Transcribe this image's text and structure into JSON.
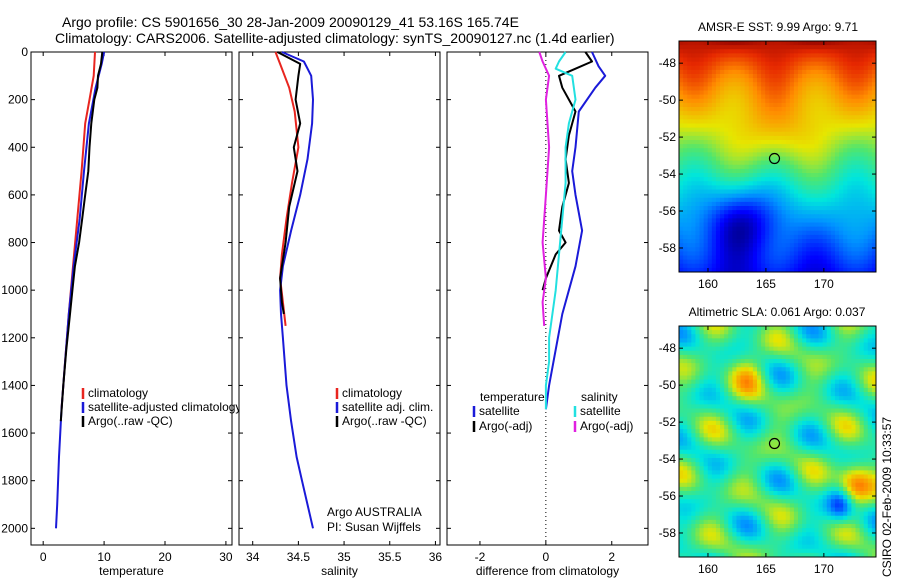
{
  "title_line1": "Argo profile: CS 5901656_30 28-Jan-2009 20090129_41 53.16S 165.74E",
  "title_line2": "Climatology: CARS2006. Satellite-adjusted climatology: synTS_20090127.nc (1.4d earlier)",
  "side_label": "CSIRO 02-Feb-2009 10:33:57",
  "colors": {
    "red": "#e8251f",
    "blue": "#1a1ad8",
    "black": "#000000",
    "cyan": "#22e0e0",
    "magenta": "#e020e0"
  },
  "chart_data": [
    {
      "type": "line",
      "name": "temperature-profile",
      "xlabel": "temperature",
      "xlim": [
        -2,
        31
      ],
      "ylim": [
        0,
        2070
      ],
      "y_reversed": true,
      "xticks": [
        0,
        10,
        20,
        30
      ],
      "yticks": [
        0,
        200,
        400,
        600,
        800,
        1000,
        1200,
        1400,
        1600,
        1800,
        2000
      ],
      "legend": [
        "climatology",
        "satellite-adjusted climatology",
        "Argo(..raw -QC)"
      ],
      "series": [
        {
          "name": "climatology",
          "color": "red",
          "x": [
            8.5,
            8.3,
            7.6,
            6.9,
            6.3,
            5.6,
            4.9,
            4.2,
            3.6,
            3.0
          ],
          "y": [
            0,
            100,
            200,
            300,
            500,
            700,
            900,
            1100,
            1300,
            1500
          ]
        },
        {
          "name": "satellite-adjusted climatology",
          "color": "blue",
          "x": [
            10.0,
            9.6,
            8.6,
            7.5,
            6.7,
            6.0,
            5.0,
            4.2,
            3.6,
            3.0,
            2.6,
            2.3,
            2.1
          ],
          "y": [
            0,
            50,
            150,
            300,
            500,
            700,
            900,
            1100,
            1300,
            1500,
            1700,
            1900,
            2000
          ]
        },
        {
          "name": "Argo(..raw -QC)",
          "color": "black",
          "x": [
            9.7,
            9.5,
            9.0,
            8.9,
            8.4,
            7.9,
            7.6,
            7.4,
            6.9,
            6.4,
            5.9,
            5.2,
            4.8,
            4.4,
            3.8,
            3.3,
            2.9
          ],
          "y": [
            0,
            50,
            100,
            150,
            200,
            300,
            400,
            500,
            600,
            700,
            800,
            900,
            1000,
            1100,
            1250,
            1400,
            1550
          ]
        }
      ]
    },
    {
      "type": "line",
      "name": "salinity-profile",
      "xlabel": "salinity",
      "xlim": [
        33.85,
        36.05
      ],
      "ylim": [
        0,
        2070
      ],
      "y_reversed": true,
      "xticks": [
        34,
        34.5,
        35,
        35.5,
        36
      ],
      "legend": [
        "climatology",
        "satellite adj. clim.",
        "Argo(..raw -QC)"
      ],
      "annotations": [
        "Argo AUSTRALIA",
        "PI: Susan Wijffels"
      ],
      "series": [
        {
          "name": "climatology",
          "color": "red",
          "x": [
            34.25,
            34.3,
            34.4,
            34.46,
            34.5,
            34.43,
            34.37,
            34.32,
            34.3,
            34.33,
            34.36
          ],
          "y": [
            0,
            50,
            150,
            250,
            400,
            550,
            700,
            850,
            950,
            1050,
            1150
          ]
        },
        {
          "name": "satellite adj. clim.",
          "color": "blue",
          "x": [
            34.32,
            34.56,
            34.64,
            34.66,
            34.65,
            34.6,
            34.52,
            34.42,
            34.33,
            34.3,
            34.31,
            34.33,
            34.37,
            34.42,
            34.48,
            34.54,
            34.6,
            34.66
          ],
          "y": [
            0,
            40,
            100,
            200,
            300,
            450,
            600,
            750,
            900,
            1000,
            1100,
            1200,
            1400,
            1550,
            1700,
            1800,
            1900,
            2000
          ]
        },
        {
          "name": "Argo(..raw -QC)",
          "color": "black",
          "x": [
            34.27,
            34.52,
            34.5,
            34.47,
            34.52,
            34.45,
            34.49,
            34.4,
            34.36,
            34.32,
            34.3,
            34.32,
            34.34
          ],
          "y": [
            0,
            50,
            100,
            200,
            300,
            400,
            500,
            650,
            800,
            900,
            950,
            1050,
            1100
          ]
        }
      ]
    },
    {
      "type": "line",
      "name": "difference-profile",
      "xlabel": "difference from climatology",
      "xlim": [
        -3.0,
        3.1
      ],
      "ylim": [
        0,
        2070
      ],
      "y_reversed": true,
      "xticks": [
        -2,
        0,
        2
      ],
      "legend_headers": [
        "temperature",
        "salinity"
      ],
      "legend": [
        "satellite",
        "Argo(-adj)",
        "satellite",
        "Argo(-adj)"
      ],
      "series": [
        {
          "name": "temperature satellite",
          "color": "blue",
          "x": [
            1.4,
            1.6,
            1.8,
            1.5,
            1.0,
            0.9,
            0.8,
            0.9,
            1.1,
            0.9,
            0.7,
            0.5,
            0.3,
            0.1,
            0.0
          ],
          "y": [
            0,
            60,
            100,
            150,
            250,
            400,
            500,
            600,
            750,
            900,
            1000,
            1100,
            1250,
            1400,
            1500
          ]
        },
        {
          "name": "temperature Argo(-adj)",
          "color": "black",
          "x": [
            1.2,
            1.4,
            0.9,
            0.4,
            0.5,
            0.9,
            0.7,
            0.6,
            0.7,
            0.5,
            0.4,
            0.6,
            0.3,
            0.0,
            -0.1
          ],
          "y": [
            0,
            40,
            70,
            100,
            150,
            250,
            350,
            450,
            550,
            650,
            750,
            800,
            850,
            950,
            1000
          ]
        },
        {
          "name": "salinity satellite",
          "color": "cyan",
          "x": [
            0.6,
            0.4,
            0.3,
            0.8,
            0.9,
            0.7,
            0.6,
            0.6,
            0.5,
            0.4,
            0.3,
            0.2,
            0.1,
            0.1,
            0.0,
            0.0
          ],
          "y": [
            0,
            40,
            70,
            100,
            200,
            300,
            400,
            550,
            700,
            850,
            1000,
            1100,
            1200,
            1300,
            1400,
            1500
          ]
        },
        {
          "name": "salinity Argo(-adj)",
          "color": "magenta",
          "x": [
            -0.2,
            -0.1,
            0.1,
            0.0,
            0.1,
            0.0,
            -0.1,
            0.0,
            -0.1,
            -0.05
          ],
          "y": [
            0,
            40,
            100,
            200,
            400,
            600,
            800,
            950,
            1050,
            1150
          ]
        }
      ],
      "zero_line": true
    },
    {
      "type": "heatmap",
      "name": "sst-map",
      "title": "AMSR-E SST: 9.99 Argo: 9.71",
      "xlim": [
        157.5,
        174.5
      ],
      "ylim": [
        -59.3,
        -46.8
      ],
      "xticks": [
        160,
        165,
        170
      ],
      "yticks": [
        -48,
        -50,
        -52,
        -54,
        -56,
        -58
      ],
      "markers": [
        {
          "lon": 165.74,
          "lat": -53.16,
          "label": "Argo position"
        }
      ]
    },
    {
      "type": "heatmap",
      "name": "sla-map",
      "title": "Altimetric SLA: 0.061 Argo: 0.037",
      "xlim": [
        157.5,
        174.5
      ],
      "ylim": [
        -59.3,
        -46.8
      ],
      "xticks": [
        160,
        165,
        170
      ],
      "yticks": [
        -48,
        -50,
        -52,
        -54,
        -56,
        -58
      ],
      "markers": [
        {
          "lon": 165.74,
          "lat": -53.16,
          "label": "Argo position"
        }
      ]
    }
  ]
}
